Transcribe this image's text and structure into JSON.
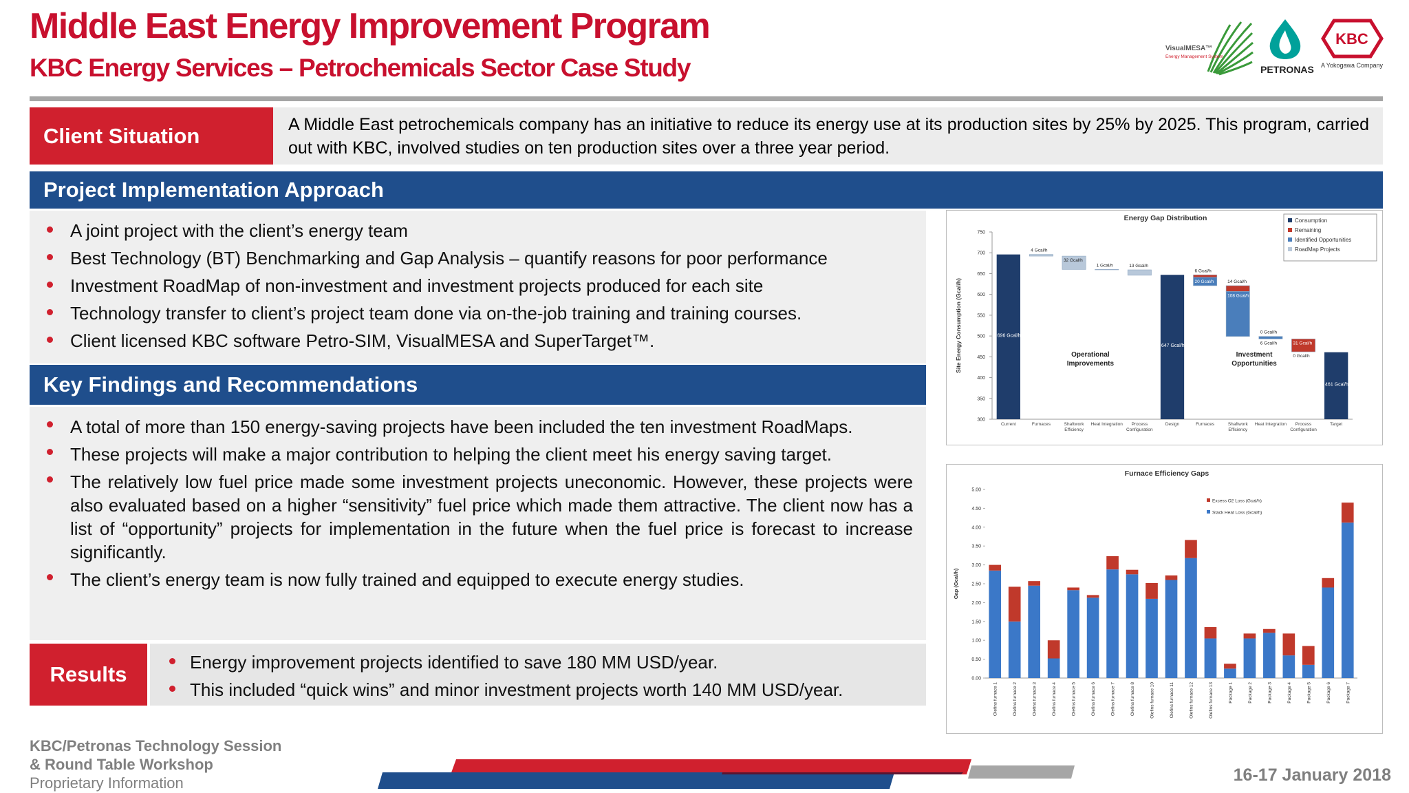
{
  "header": {
    "title": "Middle East Energy Improvement Program",
    "subtitle": "KBC Energy Services – Petrochemicals Sector Case Study"
  },
  "logos": {
    "visualmesa": "VisualMESA™",
    "visualmesa_tagline": "Energy Management System",
    "petronas": "PETRONAS",
    "kbc": "KBC",
    "kbc_tagline": "A Yokogawa Company"
  },
  "client_situation": {
    "heading": "Client Situation",
    "text": "A Middle East petrochemicals company has an initiative to reduce its energy use at its production sites by 25% by 2025. This program, carried out with KBC, involved studies on ten production sites over a three year period."
  },
  "approach": {
    "heading": "Project Implementation Approach",
    "bullets": [
      "A joint project with the client’s energy team",
      "Best Technology (BT) Benchmarking and Gap Analysis – quantify reasons for poor performance",
      "Investment RoadMap of non-investment and investment projects produced for each site",
      "Technology transfer to client’s project team done via on-the-job training and training courses.",
      "Client licensed KBC software Petro-SIM, VisualMESA and SuperTarget™."
    ]
  },
  "findings": {
    "heading": "Key Findings and Recommendations",
    "bullets": [
      "A total of more than 150 energy-saving projects have been included the ten investment RoadMaps.",
      "These projects will make a major contribution to helping the client meet his energy saving target.",
      "The relatively low fuel price made some investment projects uneconomic. However, these projects were also evaluated based on a higher “sensitivity” fuel price which made them attractive.  The client now has a list of “opportunity” projects for implementation in the future when the fuel price is forecast to increase significantly.",
      "The client’s energy team is now fully trained and equipped to execute energy studies."
    ]
  },
  "results": {
    "heading": "Results",
    "bullets": [
      "Energy improvement projects identified to save 180 MM USD/year.",
      "This included “quick wins” and minor investment projects worth 140 MM USD/year."
    ]
  },
  "footer": {
    "lines": [
      "KBC/Petronas Technology Session",
      "& Round Table Workshop",
      "Proprietary Information"
    ],
    "date": "16-17 January 2018"
  },
  "chart_data": [
    {
      "type": "waterfall",
      "title": "Energy Gap Distribution",
      "y_label": "Site Energy Consumption (Gcal/h)",
      "categories": [
        "Current",
        "Furnaces",
        "Shaftwork Efficiency",
        "Heat Integration",
        "Process Configuration",
        "Design",
        "Furnaces",
        "Shaftwork Efficiency",
        "Heat Integration",
        "Process Configuration",
        "Target"
      ],
      "series": [
        {
          "name": "Consumption",
          "color": "#1f3d6b",
          "values": [
            696,
            null,
            null,
            null,
            null,
            647,
            null,
            null,
            null,
            null,
            461
          ],
          "value_labels": [
            "696 Gcal/h",
            null,
            null,
            null,
            null,
            "647 Gcal/h",
            null,
            null,
            null,
            null,
            "461 Gcal/h"
          ]
        },
        {
          "name": "Remaining",
          "color": "#c0392b",
          "values": [
            null,
            null,
            null,
            null,
            null,
            null,
            6,
            14,
            0,
            31,
            null
          ],
          "value_labels": [
            null,
            null,
            null,
            null,
            null,
            null,
            "6 Gcal/h",
            "14 Gcal/h",
            "0 Gcal/h",
            "31 Gcal/h",
            null
          ]
        },
        {
          "name": "Identified Opportunities",
          "color": "#4a7ebb",
          "values": [
            null,
            null,
            null,
            null,
            null,
            null,
            20,
            108,
            6,
            0,
            null
          ],
          "value_labels": [
            null,
            null,
            null,
            null,
            null,
            null,
            "20 Gcal/h",
            "108 Gcal/h",
            "6 Gcal/h",
            "0 Gcal/h",
            null
          ]
        },
        {
          "name": "RoadMap Projects",
          "color": "#b8c8da",
          "values": [
            null,
            4,
            32,
            1,
            13,
            null,
            null,
            null,
            null,
            null,
            null
          ],
          "value_labels": [
            null,
            "4 Gcal/h",
            "32 Gcal/h",
            "1 Gcal/h",
            "13 Gcal/h",
            null,
            null,
            null,
            null,
            null,
            null
          ]
        }
      ],
      "annotations": [
        "Operational Improvements",
        "Investment Opportunities"
      ],
      "ylim": [
        300,
        750
      ],
      "yticks": [
        300,
        350,
        400,
        450,
        500,
        550,
        600,
        650,
        700,
        750
      ],
      "legend": "upper right"
    },
    {
      "type": "stacked_bar",
      "title": "Furnace Efficiency Gaps",
      "y_label": "Gap (Gcal/h)",
      "categories": [
        "Olefins furnace 1",
        "Olefins furnace 2",
        "Olefins furnace 3",
        "Olefins furnace 4",
        "Olefins furnace 5",
        "Olefins furnace 6",
        "Olefins furnace 7",
        "Olefins furnace 8",
        "Olefins furnace 10",
        "Olefins furnace 11",
        "Olefins furnace 12",
        "Olefins furnace 13",
        "Package 1",
        "Package 2",
        "Package 3",
        "Package 4",
        "Package 5",
        "Package 6",
        "Package 7"
      ],
      "series": [
        {
          "name": "Stack Heat Loss (Gcal/h)",
          "color": "#3b78c8",
          "values": [
            2.85,
            1.5,
            2.45,
            0.52,
            2.33,
            2.13,
            2.88,
            2.75,
            2.1,
            2.6,
            3.18,
            1.05,
            0.25,
            1.05,
            1.2,
            0.6,
            0.35,
            2.4,
            4.12
          ]
        },
        {
          "name": "Excess O2 Loss (Gcal/h)",
          "color": "#c0392b",
          "values": [
            0.15,
            0.92,
            0.12,
            0.48,
            0.07,
            0.07,
            0.35,
            0.12,
            0.42,
            0.12,
            0.48,
            0.3,
            0.13,
            0.13,
            0.1,
            0.58,
            0.5,
            0.25,
            0.53
          ]
        }
      ],
      "ylim": [
        0,
        5
      ],
      "yticks": [
        {
          "value": 0,
          "label": "0.00"
        },
        {
          "value": 0.5,
          "label": "0.50"
        },
        {
          "value": 1,
          "label": "1.00"
        },
        {
          "value": 1.5,
          "label": "1.50"
        },
        {
          "value": 2,
          "label": "2.00"
        },
        {
          "value": 2.5,
          "label": "2.50"
        },
        {
          "value": 3,
          "label": "3.00"
        },
        {
          "value": 3.5,
          "label": "3.50"
        },
        {
          "value": 4,
          "label": "4.00"
        },
        {
          "value": 4.5,
          "label": "4.50"
        },
        {
          "value": 5,
          "label": "5.00"
        }
      ],
      "legend": "upper center"
    }
  ]
}
